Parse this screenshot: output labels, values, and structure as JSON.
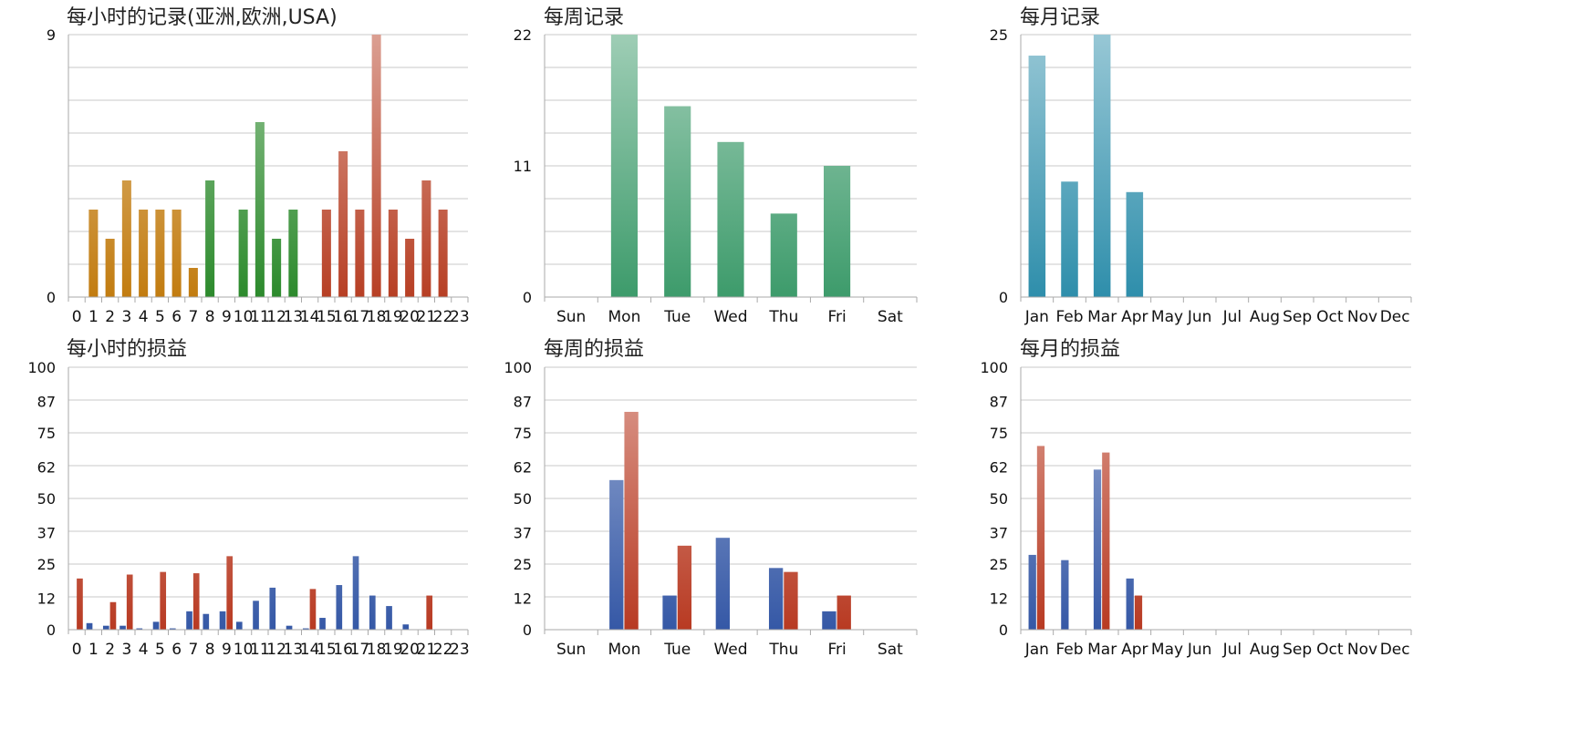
{
  "chart_data": [
    {
      "type": "bar",
      "title": "每小时的记录(亚洲,欧洲,USA)",
      "categories": [
        "0",
        "1",
        "2",
        "3",
        "4",
        "5",
        "6",
        "7",
        "8",
        "9",
        "10",
        "11",
        "12",
        "13",
        "14",
        "15",
        "16",
        "17",
        "18",
        "19",
        "20",
        "21",
        "22",
        "23"
      ],
      "values": [
        0,
        3,
        2,
        4,
        3,
        3,
        3,
        1,
        4,
        0,
        3,
        6,
        2,
        3,
        0,
        3,
        5,
        3,
        9,
        3,
        2,
        4,
        3,
        0
      ],
      "ylim": [
        0,
        9
      ],
      "yticks": [
        "0",
        "9"
      ],
      "grid": true
    },
    {
      "type": "bar",
      "title": "每周记录",
      "categories": [
        "Sun",
        "Mon",
        "Tue",
        "Wed",
        "Thu",
        "Fri",
        "Sat"
      ],
      "values": [
        0,
        22,
        16,
        13,
        7,
        11,
        0
      ],
      "ylim": [
        0,
        22
      ],
      "yticks": [
        "0",
        "11",
        "22"
      ],
      "grid": true
    },
    {
      "type": "bar",
      "title": "每月记录",
      "categories": [
        "Jan",
        "Feb",
        "Mar",
        "Apr",
        "May",
        "Jun",
        "Jul",
        "Aug",
        "Sep",
        "Oct",
        "Nov",
        "Dec"
      ],
      "values": [
        23,
        11,
        25,
        10,
        0,
        0,
        0,
        0,
        0,
        0,
        0,
        0
      ],
      "ylim": [
        0,
        25
      ],
      "yticks": [
        "0",
        "25"
      ],
      "grid": true
    },
    {
      "type": "bar",
      "title": "每小时的损益",
      "categories": [
        "0",
        "1",
        "2",
        "3",
        "4",
        "5",
        "6",
        "7",
        "8",
        "9",
        "10",
        "11",
        "12",
        "13",
        "14",
        "15",
        "16",
        "17",
        "18",
        "19",
        "20",
        "21",
        "22",
        "23"
      ],
      "series": [
        {
          "values": [
            0,
            2.5,
            1.5,
            1.5,
            0.5,
            3,
            0.5,
            7,
            6,
            7,
            3,
            11,
            16,
            1.5,
            0.5,
            4.5,
            17,
            28,
            13,
            9,
            2,
            0,
            0,
            0
          ]
        },
        {
          "values": [
            19.5,
            0,
            10.5,
            21,
            0,
            22,
            0,
            21.5,
            0,
            28,
            0,
            0,
            0,
            0,
            15.5,
            0,
            0,
            0,
            0,
            0,
            0,
            13,
            0,
            0
          ]
        }
      ],
      "ylim": [
        0,
        100
      ],
      "yticks": [
        "0",
        "12",
        "25",
        "37",
        "50",
        "62",
        "75",
        "87",
        "100"
      ],
      "grid": true
    },
    {
      "type": "bar",
      "title": "每周的损益",
      "categories": [
        "Sun",
        "Mon",
        "Tue",
        "Wed",
        "Thu",
        "Fri",
        "Sat"
      ],
      "series": [
        {
          "values": [
            0,
            57,
            13,
            35,
            23.5,
            7,
            0
          ]
        },
        {
          "values": [
            0,
            83,
            32,
            0,
            22,
            13,
            0
          ]
        }
      ],
      "ylim": [
        0,
        100
      ],
      "yticks": [
        "0",
        "12",
        "25",
        "37",
        "50",
        "62",
        "75",
        "87",
        "100"
      ],
      "grid": true
    },
    {
      "type": "bar",
      "title": "每月的损益",
      "categories": [
        "Jan",
        "Feb",
        "Mar",
        "Apr",
        "May",
        "Jun",
        "Jul",
        "Aug",
        "Sep",
        "Oct",
        "Nov",
        "Dec"
      ],
      "series": [
        {
          "values": [
            28.5,
            26.5,
            61,
            19.5,
            0,
            0,
            0,
            0,
            0,
            0,
            0,
            0
          ]
        },
        {
          "values": [
            70,
            0,
            67.5,
            13,
            0,
            0,
            0,
            0,
            0,
            0,
            0,
            0
          ]
        }
      ],
      "ylim": [
        0,
        100
      ],
      "yticks": [
        "0",
        "12",
        "25",
        "37",
        "50",
        "62",
        "75",
        "87",
        "100"
      ],
      "grid": true
    }
  ],
  "colors": {
    "hourly_orange": "#c27c10",
    "hourly_green": "#2c8a2c",
    "hourly_red": "#b73f24",
    "weekly_green": "#3d9b6b",
    "monthly_teal": "#2e8eab",
    "pl_blue": "#3558a6",
    "pl_red": "#b83a22",
    "grid": "#c8c8c8",
    "axis": "#aaaaaa"
  }
}
